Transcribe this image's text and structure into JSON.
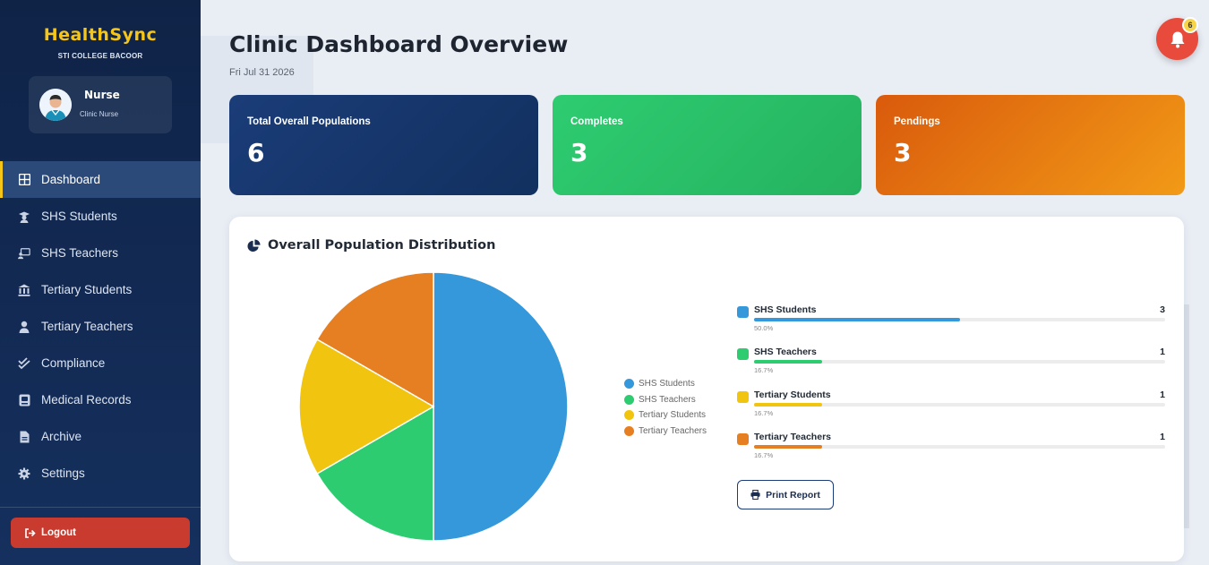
{
  "brand": {
    "title": "HealthSync",
    "subtitle": "STI COLLEGE BACOOR"
  },
  "profile": {
    "name": "Nurse",
    "role": "Clinic Nurse"
  },
  "nav": [
    {
      "label": "Dashboard",
      "icon": "dashboard-icon",
      "active": true
    },
    {
      "label": "SHS Students",
      "icon": "graduate-icon"
    },
    {
      "label": "SHS Teachers",
      "icon": "teacher-icon"
    },
    {
      "label": "Tertiary Students",
      "icon": "university-icon"
    },
    {
      "label": "Tertiary Teachers",
      "icon": "user-icon"
    },
    {
      "label": "Compliance",
      "icon": "double-check-icon"
    },
    {
      "label": "Medical Records",
      "icon": "records-icon"
    },
    {
      "label": "Archive",
      "icon": "file-icon"
    },
    {
      "label": "Settings",
      "icon": "gear-icon"
    }
  ],
  "logout_label": "Logout",
  "header": {
    "title": "Clinic Dashboard Overview",
    "date": "Fri Jul 31 2026"
  },
  "notifications": {
    "count": "6"
  },
  "cards": [
    {
      "label": "Total Overall Populations",
      "value": "6"
    },
    {
      "label": "Completes",
      "value": "3"
    },
    {
      "label": "Pendings",
      "value": "3"
    }
  ],
  "panel": {
    "title": "Overall Population Distribution",
    "print_label": "Print Report"
  },
  "colors": {
    "shs_students": "#3498db",
    "shs_teachers": "#2ecc71",
    "tertiary_students": "#f1c40f",
    "tertiary_teachers": "#e67e22"
  },
  "chart_data": {
    "type": "pie",
    "categories": [
      "SHS Students",
      "SHS Teachers",
      "Tertiary Students",
      "Tertiary Teachers"
    ],
    "values": [
      3,
      1,
      1,
      1
    ],
    "percent_labels": [
      "50.0%",
      "16.7%",
      "16.7%",
      "16.7%"
    ],
    "colors": [
      "#3498db",
      "#2ecc71",
      "#f1c40f",
      "#e67e22"
    ],
    "legend": "right"
  }
}
